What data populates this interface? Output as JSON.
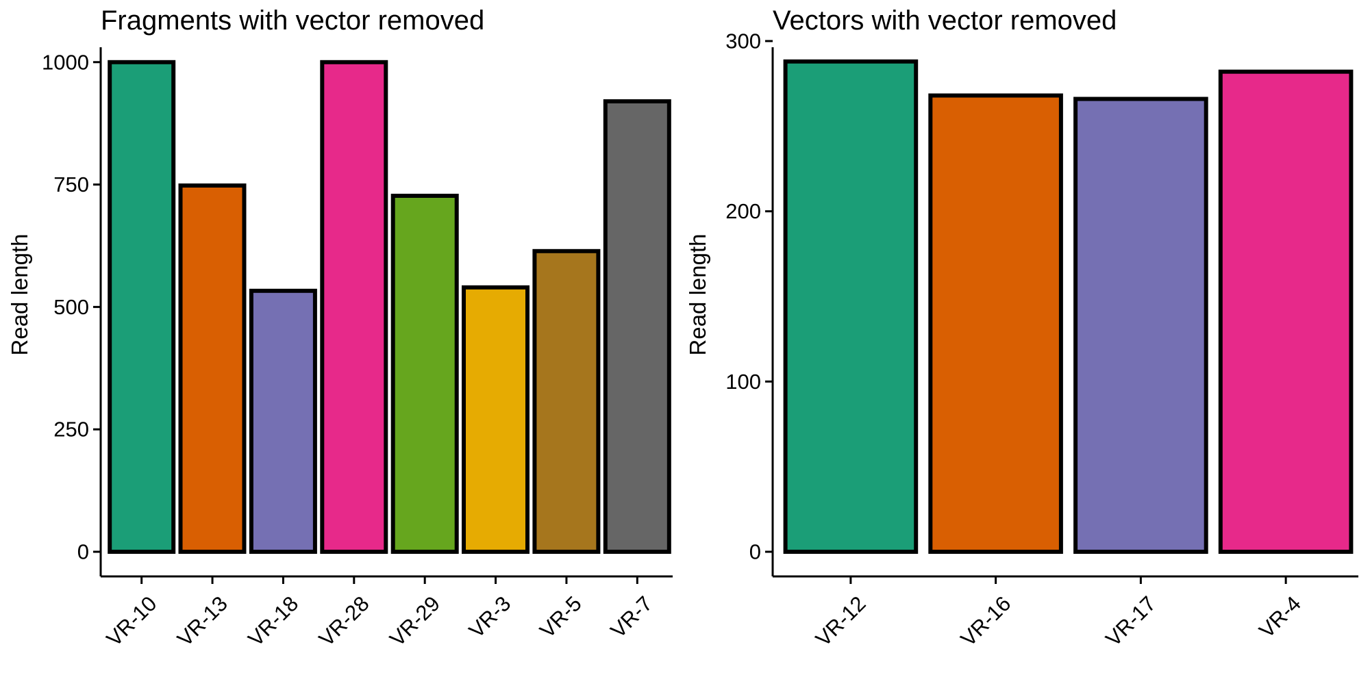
{
  "chart_data": [
    {
      "type": "bar",
      "title": "Fragments with vector removed",
      "xlabel": "",
      "ylabel": "Read length",
      "categories": [
        "VR-10",
        "VR-13",
        "VR-18",
        "VR-28",
        "VR-29",
        "VR-3",
        "VR-5",
        "VR-7"
      ],
      "values": [
        1000,
        748,
        533,
        1000,
        727,
        540,
        614,
        920
      ],
      "colors": [
        "#1b9e77",
        "#d95f02",
        "#7570b3",
        "#e7298a",
        "#66a61e",
        "#e6ab02",
        "#a6761d",
        "#666666"
      ],
      "ylim": [
        0,
        1050
      ],
      "yticks": [
        0,
        250,
        500,
        750,
        1000
      ],
      "ytick_labels": [
        "0",
        "250",
        "500",
        "750",
        "1000"
      ],
      "grid": false,
      "legend": "none"
    },
    {
      "type": "bar",
      "title": "Vectors with vector removed",
      "xlabel": "",
      "ylabel": "Read length",
      "categories": [
        "VR-12",
        "VR-16",
        "VR-17",
        "VR-4"
      ],
      "values": [
        288,
        268,
        266,
        282
      ],
      "colors": [
        "#1b9e77",
        "#d95f02",
        "#7570b3",
        "#e7298a"
      ],
      "ylim": [
        0,
        302
      ],
      "yticks": [
        0,
        100,
        200,
        300
      ],
      "ytick_labels": [
        "0",
        "100",
        "200",
        "300"
      ],
      "grid": false,
      "legend": "none"
    }
  ]
}
